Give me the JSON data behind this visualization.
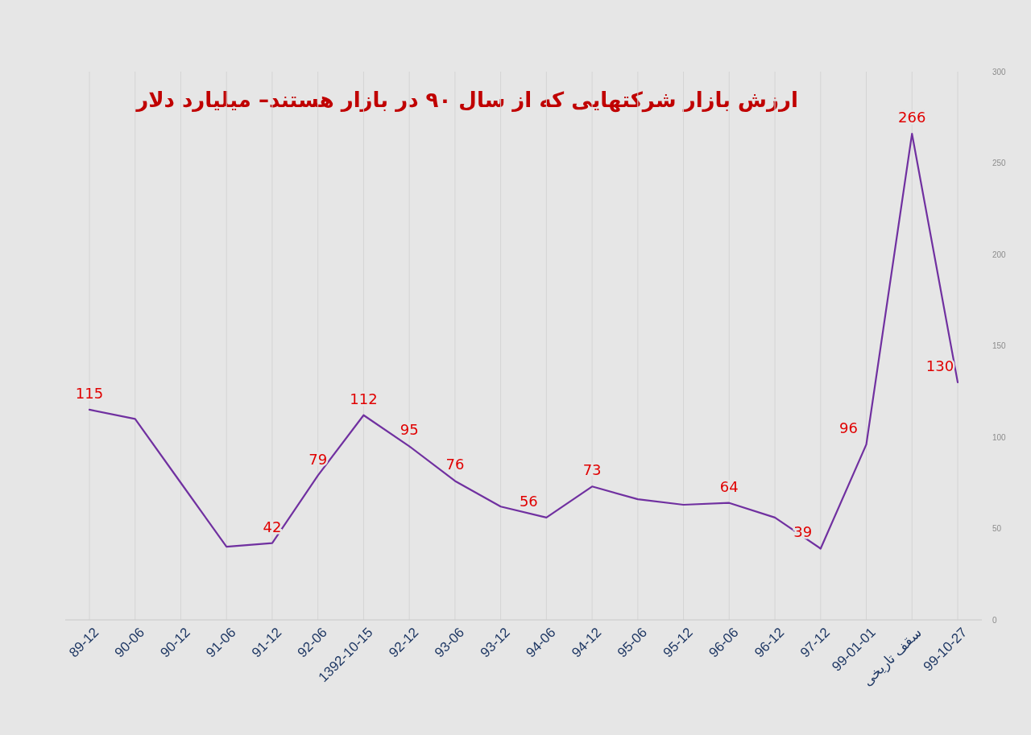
{
  "chart_data": {
    "type": "line",
    "title": "ارزش بازار  شرکتهایی که از سال ۹۰ در بازار هستند– میلیارد دلار",
    "categories": [
      "89-12",
      "90-06",
      "90-12",
      "91-06",
      "91-12",
      "92-06",
      "1392-10-15",
      "92-12",
      "93-06",
      "93-12",
      "94-06",
      "94-12",
      "95-06",
      "95-12",
      "96-06",
      "96-12",
      "97-12",
      "99-01-01",
      "سقف تاریخی",
      "99-10-27"
    ],
    "series": [
      {
        "color": "#7030a0",
        "values": [
          115,
          110,
          75,
          40,
          42,
          79,
          112,
          95,
          76,
          62,
          56,
          73,
          66,
          63,
          64,
          56,
          39,
          96,
          266,
          130
        ],
        "value_labels": [
          "115",
          null,
          null,
          null,
          "42",
          "79",
          "112",
          "95",
          "76",
          null,
          "56",
          "73",
          null,
          null,
          "64",
          null,
          "39",
          "96",
          "266",
          "130"
        ]
      }
    ],
    "ylim": [
      0,
      300
    ],
    "yticks": [
      0,
      50,
      100,
      150,
      200,
      250,
      300
    ],
    "grid": "x",
    "marker": "none",
    "line_style": "solid"
  }
}
